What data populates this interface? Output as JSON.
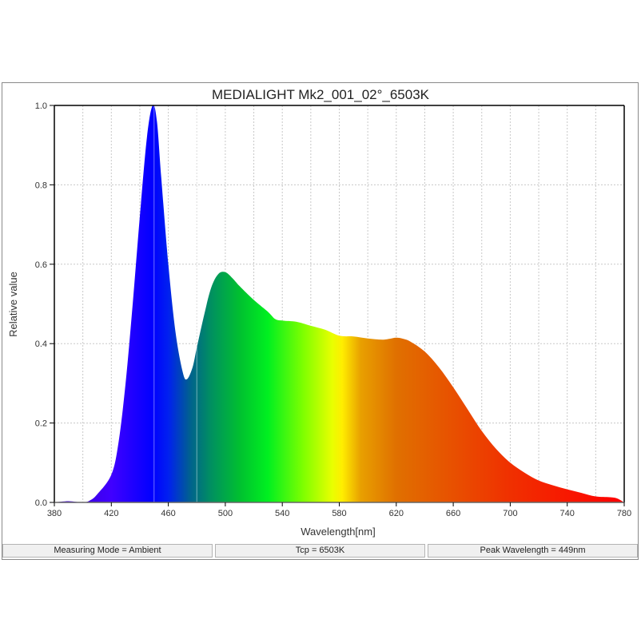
{
  "chart_data": {
    "type": "area",
    "title": "MEDIALIGHT Mk2_001_02°_6503K",
    "xlabel": "Wavelength[nm]",
    "ylabel": "Relative value",
    "xlim": [
      380,
      780
    ],
    "ylim": [
      0.0,
      1.0
    ],
    "x_ticks": [
      380,
      420,
      460,
      500,
      540,
      580,
      620,
      660,
      700,
      740,
      780
    ],
    "y_ticks": [
      "0.0",
      "0.2",
      "0.4",
      "0.6",
      "0.8",
      "1.0"
    ],
    "grid": true,
    "fill": "visible-spectrum gradient",
    "x": [
      380,
      390,
      400,
      405,
      410,
      420,
      425,
      430,
      435,
      440,
      445,
      449,
      452,
      455,
      460,
      465,
      470,
      473,
      477,
      480,
      485,
      490,
      495,
      500,
      505,
      510,
      520,
      530,
      535,
      540,
      550,
      560,
      570,
      580,
      590,
      600,
      610,
      615,
      620,
      625,
      630,
      640,
      650,
      660,
      670,
      680,
      690,
      700,
      710,
      720,
      730,
      740,
      750,
      760,
      770,
      775,
      780
    ],
    "values": [
      0.0,
      0.003,
      0.0,
      0.005,
      0.02,
      0.07,
      0.15,
      0.3,
      0.5,
      0.72,
      0.92,
      1.0,
      0.96,
      0.82,
      0.6,
      0.43,
      0.33,
      0.31,
      0.34,
      0.39,
      0.47,
      0.54,
      0.575,
      0.58,
      0.565,
      0.545,
      0.51,
      0.48,
      0.462,
      0.458,
      0.455,
      0.445,
      0.435,
      0.42,
      0.418,
      0.413,
      0.41,
      0.412,
      0.415,
      0.412,
      0.405,
      0.38,
      0.34,
      0.29,
      0.235,
      0.18,
      0.135,
      0.1,
      0.075,
      0.055,
      0.043,
      0.033,
      0.024,
      0.015,
      0.013,
      0.01,
      0.0
    ],
    "peak_wavelength_nm": 449
  },
  "status_bar": {
    "measuring_mode": "Measuring Mode = Ambient",
    "tcp": "Tcp = 6503K",
    "peak_wavelength": "Peak Wavelength = 449nm"
  },
  "spectrum_stops": [
    {
      "nm": 380,
      "color": "#3a00c8"
    },
    {
      "nm": 420,
      "color": "#4000ff"
    },
    {
      "nm": 449,
      "color": "#0000ff"
    },
    {
      "nm": 460,
      "color": "#0020f0"
    },
    {
      "nm": 475,
      "color": "#006090"
    },
    {
      "nm": 490,
      "color": "#009060"
    },
    {
      "nm": 510,
      "color": "#00c030"
    },
    {
      "nm": 530,
      "color": "#00f020"
    },
    {
      "nm": 555,
      "color": "#80ff00"
    },
    {
      "nm": 575,
      "color": "#e8ff00"
    },
    {
      "nm": 582,
      "color": "#ffee00"
    },
    {
      "nm": 595,
      "color": "#e8a000"
    },
    {
      "nm": 620,
      "color": "#e07000"
    },
    {
      "nm": 660,
      "color": "#e85000"
    },
    {
      "nm": 700,
      "color": "#f03000"
    },
    {
      "nm": 780,
      "color": "#ff0000"
    }
  ]
}
